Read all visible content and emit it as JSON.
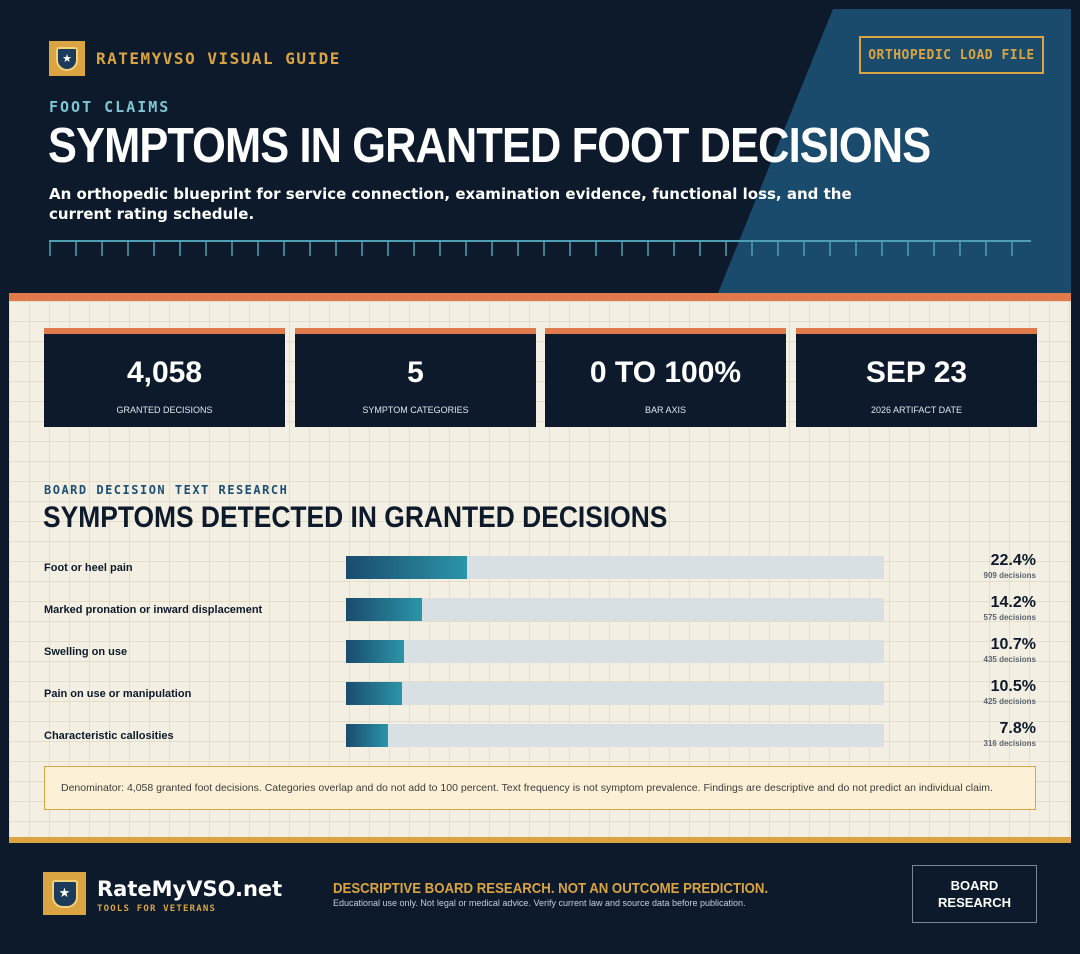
{
  "header": {
    "brand": "RATEMYVSO VISUAL GUIDE",
    "file_tag": "ORTHOPEDIC LOAD FILE",
    "eyebrow": "FOOT CLAIMS",
    "title": "SYMPTOMS IN GRANTED FOOT DECISIONS",
    "subtitle": "An orthopedic blueprint for service connection, examination evidence, functional loss, and the current rating schedule."
  },
  "stats": [
    {
      "value": "4,058",
      "label": "GRANTED DECISIONS"
    },
    {
      "value": "5",
      "label": "SYMPTOM CATEGORIES"
    },
    {
      "value": "0 TO 100%",
      "label": "BAR AXIS"
    },
    {
      "value": "SEP 23",
      "label": "2026 ARTIFACT DATE"
    }
  ],
  "section": {
    "kicker": "BOARD DECISION TEXT RESEARCH",
    "title": "SYMPTOMS DETECTED IN GRANTED DECISIONS"
  },
  "chart_data": {
    "type": "bar",
    "orientation": "horizontal",
    "title": "SYMPTOMS DETECTED IN GRANTED DECISIONS",
    "xlim": [
      0,
      100
    ],
    "grid": false,
    "categories": [
      "Foot or heel pain",
      "Marked pronation or inward displacement",
      "Swelling on use",
      "Pain on use or manipulation",
      "Characteristic callosities"
    ],
    "values": [
      22.4,
      14.2,
      10.7,
      10.5,
      7.8
    ],
    "value_labels": [
      "22.4%",
      "14.2%",
      "10.7%",
      "10.5%",
      "7.8%"
    ],
    "counts": [
      "909 decisions",
      "575 decisions",
      "435 decisions",
      "425 decisions",
      "316 decisions"
    ],
    "bar_colors": [
      "#1a4b6d",
      "#2b95a8"
    ],
    "track_color": "#d8e0e4"
  },
  "note": "Denominator: 4,058 granted foot decisions. Categories overlap and do not add to 100 percent. Text frequency is not symptom prevalence. Findings are descriptive and do not predict an individual claim.",
  "footer": {
    "brand": "RateMyVSO.net",
    "tagline": "TOOLS FOR VETERANS",
    "disclaimer": "DESCRIPTIVE BOARD RESEARCH. NOT AN OUTCOME PREDICTION.",
    "fine_print": "Educational use only. Not legal or medical advice. Verify current law and source data before publication.",
    "box_line1": "BOARD",
    "box_line2": "RESEARCH"
  },
  "icons": {
    "badge": "shield-star-icon"
  },
  "colors": {
    "navy": "#0c1a2b",
    "gold": "#d9a441",
    "orange": "#e07a4a",
    "teal": "#2b95a8",
    "cream": "#f3efe2"
  }
}
